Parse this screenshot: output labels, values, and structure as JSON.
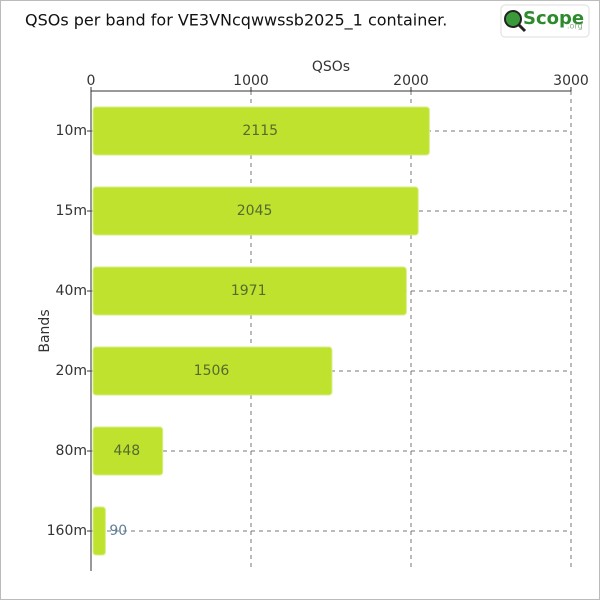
{
  "chart_data": {
    "type": "bar",
    "orientation": "horizontal",
    "title": "QSOs per band for VE3VNcqwwssb2025_1 container.",
    "logo": {
      "text": "Scope",
      "suffix": ".org"
    },
    "x_label": "QSOs",
    "y_label": "Bands",
    "categories": [
      "10m",
      "15m",
      "40m",
      "20m",
      "80m",
      "160m"
    ],
    "values": [
      2115,
      2045,
      1971,
      1506,
      448,
      90
    ],
    "color": "#bfe22e",
    "xlim": [
      0,
      3000
    ],
    "xticks": [
      0,
      1000,
      2000,
      3000
    ],
    "grid": true
  }
}
